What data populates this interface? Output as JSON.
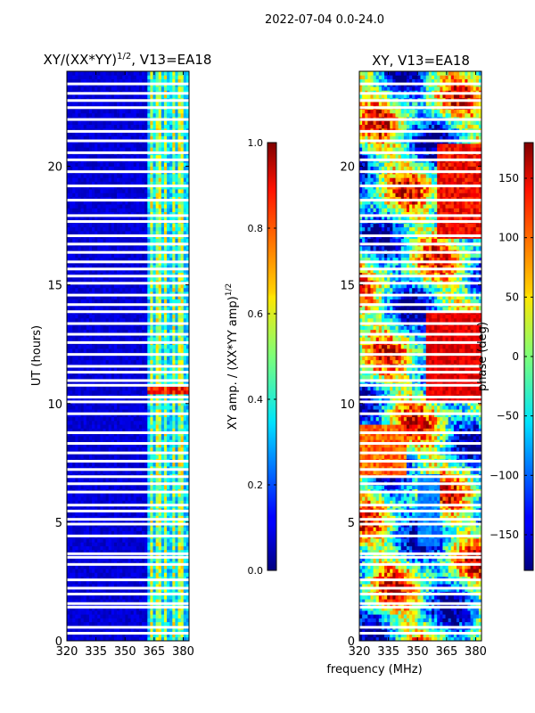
{
  "figure": {
    "suptitle": "2022-07-04 0.0-24.0"
  },
  "chart_data": [
    {
      "type": "heatmap",
      "title_main": "XY/(XX*YY)",
      "title_exp": "1/2",
      "title_tail": ", V13=EA18",
      "xlabel": "",
      "ylabel": "UT (hours)",
      "xlim": [
        320,
        383
      ],
      "ylim": [
        0,
        24
      ],
      "xticks": [
        320,
        335,
        350,
        365,
        380
      ],
      "xtick_labels": [
        "320",
        "335",
        "350",
        "365",
        "380"
      ],
      "yticks": [
        0,
        5,
        10,
        15,
        20
      ],
      "ytick_labels": [
        "0",
        "5",
        "10",
        "15",
        "20"
      ],
      "quantity": "amplitude",
      "colorbar": {
        "label_main": "XY amp. / (XX*YY amp)",
        "label_exp": "1/2",
        "range": [
          0.0,
          1.0
        ],
        "ticks": [
          0.0,
          0.2,
          0.4,
          0.6,
          0.8,
          1.0
        ],
        "tick_labels": [
          "0.0",
          "0.2",
          "0.4",
          "0.6",
          "0.8",
          "1.0"
        ]
      }
    },
    {
      "type": "heatmap",
      "title_main": "XY, V13=EA18",
      "xlabel": "frequency (MHz)",
      "ylabel": "",
      "xlim": [
        320,
        383
      ],
      "ylim": [
        0,
        24
      ],
      "xticks": [
        320,
        335,
        350,
        365,
        380
      ],
      "xtick_labels": [
        "320",
        "335",
        "350",
        "365",
        "380"
      ],
      "yticks": [
        0,
        5,
        10,
        15,
        20
      ],
      "ytick_labels": [
        "0",
        "5",
        "10",
        "15",
        "20"
      ],
      "quantity": "phase",
      "colorbar": {
        "label_main": "phase (deg)",
        "range": [
          -180,
          180
        ],
        "ticks": [
          -150,
          -100,
          -50,
          0,
          50,
          100,
          150
        ],
        "tick_labels": [
          "−150",
          "−100",
          "−50",
          "0",
          "50",
          "100",
          "150"
        ]
      }
    }
  ],
  "flagged_rows_ut_hours": [
    0.3,
    0.55,
    1.4,
    1.55,
    1.95,
    2.2,
    2.55,
    3.2,
    3.5,
    3.65,
    4.4,
    4.9,
    5.1,
    5.45,
    5.7,
    6.25,
    6.6,
    6.9,
    7.2,
    7.55,
    7.9,
    8.3,
    8.75,
    9.55,
    10.05,
    10.25,
    10.75,
    10.95,
    11.3,
    11.55,
    12.05,
    12.55,
    12.9,
    13.35,
    13.85,
    14.15,
    14.55,
    15.05,
    15.35,
    15.65,
    15.95,
    16.35,
    16.7,
    17.05,
    17.65,
    17.9,
    18.55,
    19.15,
    19.75,
    20.25,
    20.55,
    21.05,
    21.45,
    21.95,
    22.45,
    22.75,
    23.05,
    23.45
  ],
  "rfi_channels_mhz": [
    364,
    367,
    371,
    375,
    379
  ]
}
